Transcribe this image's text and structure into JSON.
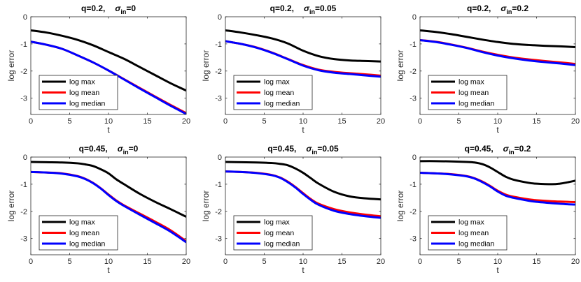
{
  "chart_data": [
    {
      "type": "line",
      "title": {
        "q": "q=0.2,",
        "sigma": "σ",
        "sub": "in",
        "value": "=0"
      },
      "xlabel": "t",
      "ylabel": "log error",
      "xlim": [
        0,
        20
      ],
      "ylim": [
        -3.6,
        0
      ],
      "xticks": [
        0,
        5,
        10,
        15,
        20
      ],
      "yticks": [
        0,
        -1,
        -2,
        -3
      ],
      "legend_location": "lower-left",
      "x": [
        0,
        2,
        4,
        6,
        8,
        10,
        12,
        14,
        16,
        18,
        20
      ],
      "series": [
        {
          "name": "log max",
          "color": "#000000",
          "values": [
            -0.5,
            -0.58,
            -0.7,
            -0.85,
            -1.05,
            -1.3,
            -1.55,
            -1.85,
            -2.15,
            -2.45,
            -2.72
          ]
        },
        {
          "name": "log mean",
          "color": "#ff0000",
          "values": [
            -0.92,
            -1.03,
            -1.18,
            -1.42,
            -1.68,
            -1.98,
            -2.3,
            -2.62,
            -2.94,
            -3.25,
            -3.55
          ]
        },
        {
          "name": "log median",
          "color": "#0000ff",
          "values": [
            -0.92,
            -1.03,
            -1.18,
            -1.42,
            -1.68,
            -1.98,
            -2.31,
            -2.64,
            -2.96,
            -3.28,
            -3.58
          ]
        }
      ]
    },
    {
      "type": "line",
      "title": {
        "q": "q=0.2,",
        "sigma": "σ",
        "sub": "in",
        "value": "=0.05"
      },
      "xlabel": "t",
      "ylabel": "log error",
      "xlim": [
        0,
        20
      ],
      "ylim": [
        -3.6,
        0
      ],
      "xticks": [
        0,
        5,
        10,
        15,
        20
      ],
      "yticks": [
        0,
        -1,
        -2,
        -3
      ],
      "legend_location": "lower-left",
      "x": [
        0,
        2,
        4,
        6,
        8,
        10,
        12,
        14,
        16,
        18,
        20
      ],
      "series": [
        {
          "name": "log max",
          "color": "#000000",
          "values": [
            -0.5,
            -0.58,
            -0.68,
            -0.8,
            -0.98,
            -1.25,
            -1.45,
            -1.56,
            -1.61,
            -1.63,
            -1.65
          ]
        },
        {
          "name": "log mean",
          "color": "#ff0000",
          "values": [
            -0.9,
            -1.0,
            -1.13,
            -1.32,
            -1.55,
            -1.78,
            -1.95,
            -2.03,
            -2.08,
            -2.12,
            -2.17
          ]
        },
        {
          "name": "log median",
          "color": "#0000ff",
          "values": [
            -0.9,
            -1.0,
            -1.14,
            -1.33,
            -1.56,
            -1.8,
            -1.97,
            -2.06,
            -2.11,
            -2.16,
            -2.21
          ]
        }
      ]
    },
    {
      "type": "line",
      "title": {
        "q": "q=0.2,",
        "sigma": "σ",
        "sub": "in",
        "value": "=0.2"
      },
      "xlabel": "t",
      "ylabel": "log error",
      "xlim": [
        0,
        20
      ],
      "ylim": [
        -3.6,
        0
      ],
      "xticks": [
        0,
        5,
        10,
        15,
        20
      ],
      "yticks": [
        0,
        -1,
        -2,
        -3
      ],
      "legend_location": "lower-left",
      "x": [
        0,
        2,
        4,
        6,
        8,
        10,
        12,
        14,
        16,
        18,
        20
      ],
      "series": [
        {
          "name": "log max",
          "color": "#000000",
          "values": [
            -0.5,
            -0.56,
            -0.64,
            -0.74,
            -0.84,
            -0.93,
            -1.0,
            -1.04,
            -1.07,
            -1.09,
            -1.12
          ]
        },
        {
          "name": "log mean",
          "color": "#ff0000",
          "values": [
            -0.86,
            -0.92,
            -1.02,
            -1.14,
            -1.28,
            -1.4,
            -1.5,
            -1.57,
            -1.63,
            -1.68,
            -1.74
          ]
        },
        {
          "name": "log median",
          "color": "#0000ff",
          "values": [
            -0.86,
            -0.93,
            -1.03,
            -1.15,
            -1.3,
            -1.43,
            -1.53,
            -1.61,
            -1.67,
            -1.72,
            -1.78
          ]
        }
      ]
    },
    {
      "type": "line",
      "title": {
        "q": "q=0.45,",
        "sigma": "σ",
        "sub": "in",
        "value": "=0"
      },
      "xlabel": "t",
      "ylabel": "log error",
      "xlim": [
        0,
        20
      ],
      "ylim": [
        -3.6,
        0
      ],
      "xticks": [
        0,
        5,
        10,
        15,
        20
      ],
      "yticks": [
        0,
        -1,
        -2,
        -3
      ],
      "legend_location": "lower-left",
      "x": [
        0,
        2,
        4,
        6,
        7,
        8,
        9,
        10,
        11,
        12,
        14,
        16,
        18,
        20
      ],
      "series": [
        {
          "name": "log max",
          "color": "#000000",
          "values": [
            -0.18,
            -0.19,
            -0.2,
            -0.23,
            -0.27,
            -0.33,
            -0.45,
            -0.6,
            -0.82,
            -1.0,
            -1.35,
            -1.65,
            -1.92,
            -2.2
          ]
        },
        {
          "name": "log mean",
          "color": "#ff0000",
          "values": [
            -0.55,
            -0.57,
            -0.6,
            -0.7,
            -0.8,
            -0.95,
            -1.15,
            -1.38,
            -1.6,
            -1.78,
            -2.08,
            -2.38,
            -2.7,
            -3.1
          ]
        },
        {
          "name": "log median",
          "color": "#0000ff",
          "values": [
            -0.55,
            -0.57,
            -0.61,
            -0.71,
            -0.81,
            -0.96,
            -1.16,
            -1.4,
            -1.62,
            -1.8,
            -2.12,
            -2.43,
            -2.75,
            -3.14
          ]
        }
      ]
    },
    {
      "type": "line",
      "title": {
        "q": "q=0.45,",
        "sigma": "σ",
        "sub": "in",
        "value": "=0.05"
      },
      "xlabel": "t",
      "ylabel": "log error",
      "xlim": [
        0,
        20
      ],
      "ylim": [
        -3.6,
        0
      ],
      "xticks": [
        0,
        5,
        10,
        15,
        20
      ],
      "yticks": [
        0,
        -1,
        -2,
        -3
      ],
      "legend_location": "lower-left",
      "x": [
        0,
        2,
        4,
        6,
        7,
        8,
        9,
        10,
        11,
        12,
        14,
        16,
        18,
        20
      ],
      "series": [
        {
          "name": "log max",
          "color": "#000000",
          "values": [
            -0.18,
            -0.19,
            -0.2,
            -0.22,
            -0.25,
            -0.3,
            -0.42,
            -0.58,
            -0.78,
            -0.98,
            -1.28,
            -1.45,
            -1.52,
            -1.56
          ]
        },
        {
          "name": "log mean",
          "color": "#ff0000",
          "values": [
            -0.53,
            -0.55,
            -0.58,
            -0.66,
            -0.75,
            -0.9,
            -1.1,
            -1.33,
            -1.55,
            -1.72,
            -1.92,
            -2.04,
            -2.12,
            -2.18
          ]
        },
        {
          "name": "log median",
          "color": "#0000ff",
          "values": [
            -0.53,
            -0.55,
            -0.59,
            -0.67,
            -0.76,
            -0.92,
            -1.12,
            -1.36,
            -1.58,
            -1.76,
            -1.98,
            -2.1,
            -2.18,
            -2.24
          ]
        }
      ]
    },
    {
      "type": "line",
      "title": {
        "q": "q=0.45,",
        "sigma": "σ",
        "sub": "in",
        "value": "=0.2"
      },
      "xlabel": "t",
      "ylabel": "log error",
      "xlim": [
        0,
        20
      ],
      "ylim": [
        -3.6,
        0
      ],
      "xticks": [
        0,
        5,
        10,
        15,
        20
      ],
      "yticks": [
        0,
        -1,
        -2,
        -3
      ],
      "legend_location": "lower-left",
      "x": [
        0,
        2,
        4,
        6,
        7,
        8,
        9,
        10,
        11,
        12,
        14,
        15,
        17,
        18,
        19,
        20
      ],
      "series": [
        {
          "name": "log max",
          "color": "#000000",
          "values": [
            -0.15,
            -0.15,
            -0.16,
            -0.18,
            -0.2,
            -0.26,
            -0.38,
            -0.55,
            -0.72,
            -0.83,
            -0.95,
            -0.98,
            -1.0,
            -0.98,
            -0.93,
            -0.87
          ]
        },
        {
          "name": "log mean",
          "color": "#ff0000",
          "values": [
            -0.58,
            -0.6,
            -0.63,
            -0.7,
            -0.78,
            -0.9,
            -1.06,
            -1.24,
            -1.38,
            -1.46,
            -1.56,
            -1.59,
            -1.63,
            -1.64,
            -1.65,
            -1.66
          ]
        },
        {
          "name": "log median",
          "color": "#0000ff",
          "values": [
            -0.58,
            -0.6,
            -0.64,
            -0.71,
            -0.79,
            -0.92,
            -1.08,
            -1.27,
            -1.42,
            -1.5,
            -1.61,
            -1.65,
            -1.7,
            -1.72,
            -1.74,
            -1.75
          ]
        }
      ]
    }
  ]
}
